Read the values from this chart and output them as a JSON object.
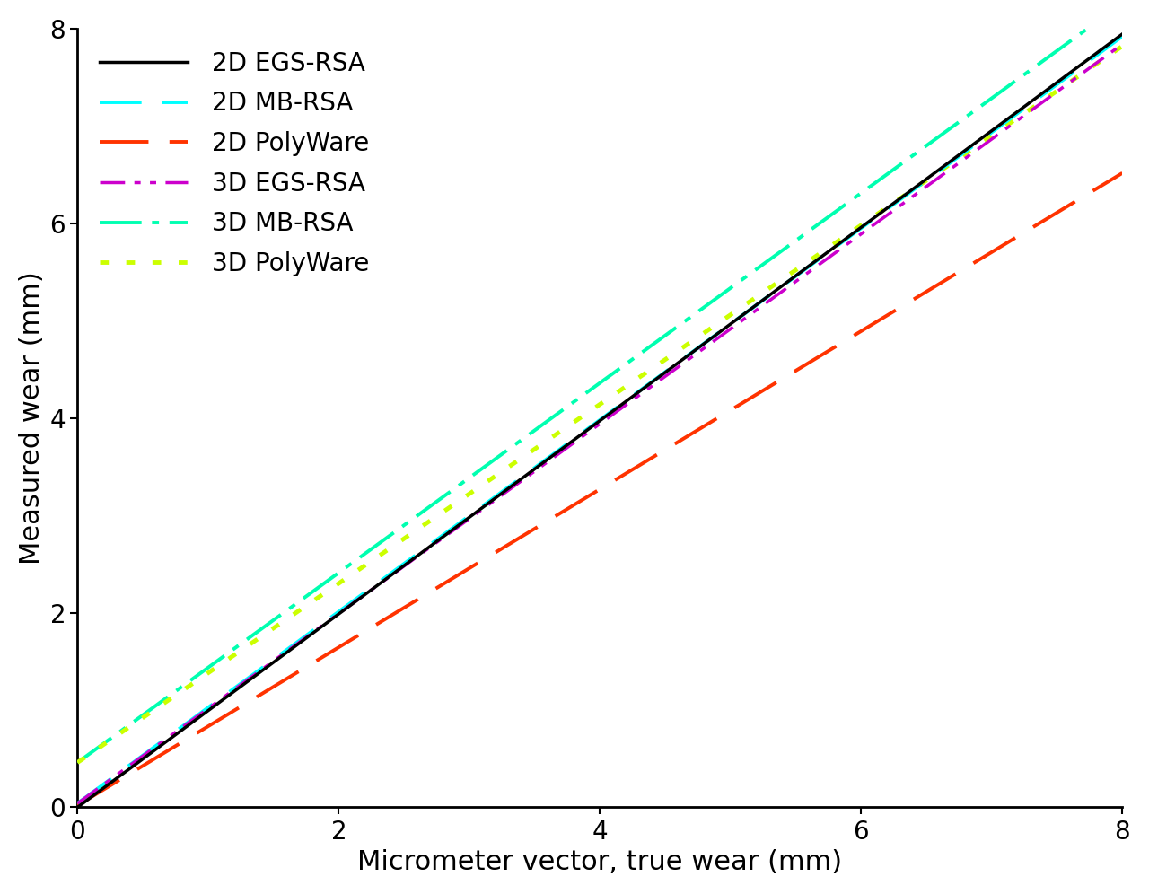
{
  "title": "",
  "xlabel": "Micrometer vector, true wear (mm)",
  "ylabel": "Measured wear (mm)",
  "xlim": [
    0,
    8
  ],
  "ylim": [
    0,
    8
  ],
  "xticks": [
    0,
    2,
    4,
    6,
    8
  ],
  "yticks": [
    0,
    2,
    4,
    6,
    8
  ],
  "x_range": [
    0,
    8
  ],
  "lines": [
    {
      "label": "2D EGS-RSA",
      "slope": 0.993,
      "intercept": 0.0,
      "color": "#000000",
      "linestyle": "solid",
      "linewidth": 2.5,
      "dashes": null,
      "zorder": 5
    },
    {
      "label": "2D MB-RSA",
      "slope": 0.985,
      "intercept": 0.04,
      "color": "#00FFFF",
      "linestyle": "dashed",
      "linewidth": 2.8,
      "dashes": [
        12,
        6
      ],
      "zorder": 4
    },
    {
      "label": "2D PolyWare",
      "slope": 0.812,
      "intercept": 0.02,
      "color": "#FF3300",
      "linestyle": "dashed",
      "linewidth": 2.8,
      "dashes": [
        14,
        6
      ],
      "zorder": 3
    },
    {
      "label": "3D EGS-RSA",
      "slope": 0.975,
      "intercept": 0.04,
      "color": "#CC00CC",
      "linestyle": "dashdot",
      "linewidth": 2.5,
      "dashes": [
        8,
        3,
        2,
        3,
        2,
        3
      ],
      "zorder": 4
    },
    {
      "label": "3D MB-RSA",
      "slope": 0.975,
      "intercept": 0.46,
      "color": "#00FFB0",
      "linestyle": "dashdot",
      "linewidth": 2.8,
      "dashes": [
        12,
        3,
        2,
        3
      ],
      "zorder": 3
    },
    {
      "label": "3D PolyWare",
      "slope": 0.92,
      "intercept": 0.46,
      "color": "#CCFF00",
      "linestyle": "dotted",
      "linewidth": 3.5,
      "dashes": [
        2,
        4
      ],
      "zorder": 3
    }
  ],
  "legend_fontsize": 20,
  "axis_label_fontsize": 22,
  "tick_fontsize": 20,
  "background_color": "#FFFFFF"
}
